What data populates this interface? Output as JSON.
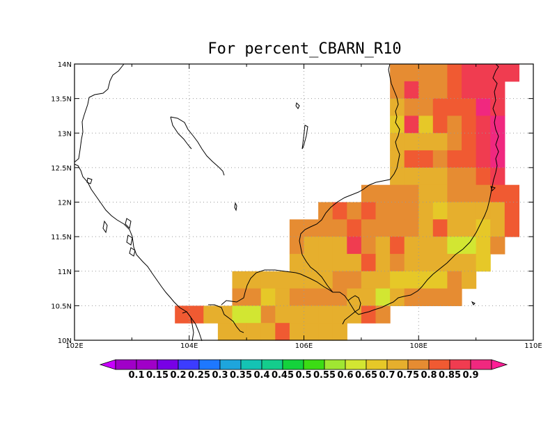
{
  "title": "For percent_CBARN_R10",
  "colors": {
    "0.1": "#a000c8",
    "0.15": "#7800e6",
    "0.2": "#3c3cff",
    "0.25": "#1e78ff",
    "0.3": "#1ea5dc",
    "0.35": "#14c3b4",
    "0.4": "#14cd8c",
    "0.45": "#14d23c",
    "0.5": "#3cdc14",
    "0.55": "#a0e632",
    "0.6": "#d2e632",
    "0.65": "#e6c828",
    "0.7": "#e6af2d",
    "0.75": "#e68c32",
    "0.8": "#f05a32",
    "0.85": "#f03c50",
    "0.9": "#f0287f",
    "below": "#c800ff",
    "above": "#ff1e96"
  },
  "chart_data": {
    "type": "heatmap",
    "title": "For percent_CBARN_R10",
    "xlim": [
      102,
      110
    ],
    "ylim": [
      10,
      14
    ],
    "x_ticks": [
      "102E",
      "104E",
      "106E",
      "108E",
      "110E"
    ],
    "y_ticks": [
      "10N",
      "10.5N",
      "11N",
      "11.5N",
      "12N",
      "12.5N",
      "13N",
      "13.5N",
      "14N"
    ],
    "grid": true,
    "cell_size_deg": 0.25,
    "colorbar_labels": [
      "0.1",
      "0.15",
      "0.2",
      "0.25",
      "0.3",
      "0.35",
      "0.4",
      "0.45",
      "0.5",
      "0.55",
      "0.6",
      "0.65",
      "0.7",
      "0.75",
      "0.8",
      "0.85",
      "0.9"
    ],
    "rows": [
      {
        "lat": 13.875,
        "lon_start": 107.5,
        "values": [
          0.75,
          0.75,
          0.75,
          0.75,
          0.8,
          0.85,
          0.85,
          0.85,
          0.85
        ]
      },
      {
        "lat": 13.625,
        "lon_start": 107.5,
        "values": [
          0.75,
          0.85,
          0.75,
          0.75,
          0.8,
          0.85,
          0.85,
          0.85
        ]
      },
      {
        "lat": 13.375,
        "lon_start": 107.5,
        "values": [
          0.7,
          0.75,
          0.75,
          0.8,
          0.8,
          0.8,
          0.9,
          0.85
        ]
      },
      {
        "lat": 13.125,
        "lon_start": 107.5,
        "values": [
          0.65,
          0.85,
          0.65,
          0.8,
          0.75,
          0.8,
          0.85,
          0.9
        ]
      },
      {
        "lat": 12.875,
        "lon_start": 107.5,
        "values": [
          0.7,
          0.7,
          0.7,
          0.7,
          0.75,
          0.8,
          0.85,
          0.9
        ]
      },
      {
        "lat": 12.625,
        "lon_start": 107.5,
        "values": [
          0.7,
          0.8,
          0.8,
          0.75,
          0.8,
          0.8,
          0.85,
          0.9
        ]
      },
      {
        "lat": 12.375,
        "lon_start": 107.5,
        "values": [
          0.7,
          0.7,
          0.7,
          0.7,
          0.75,
          0.75,
          0.8,
          0.85
        ]
      },
      {
        "lat": 12.125,
        "lon_start": 107.0,
        "values": [
          0.75,
          0.75,
          0.75,
          0.75,
          0.7,
          0.7,
          0.75,
          0.75,
          0.75,
          0.8,
          0.8
        ]
      },
      {
        "lat": 11.875,
        "lon_start": 106.25,
        "values": [
          0.75,
          0.8,
          0.75,
          0.8,
          0.75,
          0.75,
          0.75,
          0.7,
          0.65,
          0.7,
          0.7,
          0.7,
          0.7,
          0.8
        ]
      },
      {
        "lat": 11.625,
        "lon_start": 105.75,
        "values": [
          0.75,
          0.75,
          0.75,
          0.75,
          0.8,
          0.75,
          0.75,
          0.75,
          0.75,
          0.7,
          0.8,
          0.7,
          0.7,
          0.65,
          0.7,
          0.8
        ]
      },
      {
        "lat": 11.375,
        "lon_start": 105.75,
        "values": [
          0.75,
          0.7,
          0.7,
          0.7,
          0.85,
          0.75,
          0.7,
          0.8,
          0.7,
          0.7,
          0.7,
          0.6,
          0.6,
          0.65,
          0.75
        ]
      },
      {
        "lat": 11.125,
        "lon_start": 105.75,
        "values": [
          0.7,
          0.7,
          0.7,
          0.7,
          0.7,
          0.8,
          0.7,
          0.75,
          0.7,
          0.7,
          0.7,
          0.7,
          0.7,
          0.65
        ]
      },
      {
        "lat": 10.875,
        "lon_start": 104.75,
        "values": [
          0.7,
          0.7,
          0.7,
          0.7,
          0.7,
          0.7,
          0.7,
          0.75,
          0.75,
          0.7,
          0.7,
          0.65,
          0.65,
          0.65,
          0.65,
          0.75,
          0.7
        ]
      },
      {
        "lat": 10.625,
        "lon_start": 104.75,
        "values": [
          0.75,
          0.75,
          0.65,
          0.7,
          0.75,
          0.75,
          0.75,
          0.75,
          0.7,
          0.7,
          0.6,
          0.7,
          0.75,
          0.75,
          0.75,
          0.75
        ]
      },
      {
        "lat": 10.375,
        "lon_start": 103.75,
        "values": [
          0.8,
          0.8,
          0.7,
          0.7,
          0.6,
          0.6,
          0.75,
          0.7,
          0.7,
          0.7,
          0.7,
          0.7,
          0.7,
          0.8,
          0.75
        ]
      },
      {
        "lat": 10.125,
        "lon_start": 104.5,
        "values": [
          0.7,
          0.7,
          0.7,
          0.7,
          0.8,
          0.7,
          0.7,
          0.7,
          0.7
        ]
      }
    ]
  }
}
